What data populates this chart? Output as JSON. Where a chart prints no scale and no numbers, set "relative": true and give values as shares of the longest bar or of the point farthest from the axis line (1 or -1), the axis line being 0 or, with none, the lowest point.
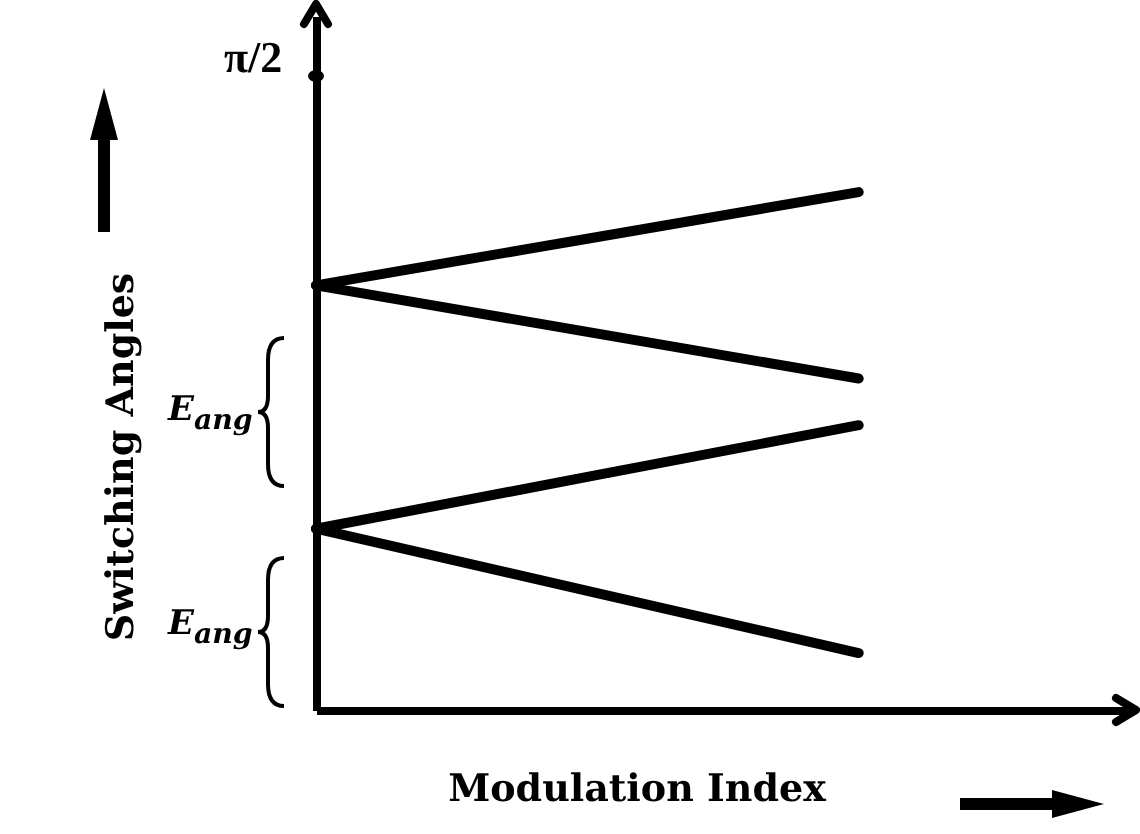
{
  "chart_data": {
    "type": "line",
    "relative": true,
    "xlabel": "Modulation Index",
    "ylabel": "Switching Angles",
    "categories": [
      null,
      null,
      null,
      null
    ],
    "series": [
      {
        "color": "#000000",
        "values": [
          0.82,
          0.91,
          1.0,
          null
        ]
      },
      {
        "color": "#000000",
        "values": [
          0.82,
          0.73,
          0.64,
          null
        ]
      },
      {
        "color": "#000000",
        "values": [
          0.35,
          0.45,
          0.55,
          null
        ]
      },
      {
        "color": "#000000",
        "values": [
          0.35,
          0.23,
          0.11,
          null
        ]
      }
    ],
    "annotations": [
      "π/2",
      "E$_{ang}$",
      "E$_{ang}$"
    ],
    "grid": false,
    "marker": "none",
    "line_style": "solid"
  }
}
